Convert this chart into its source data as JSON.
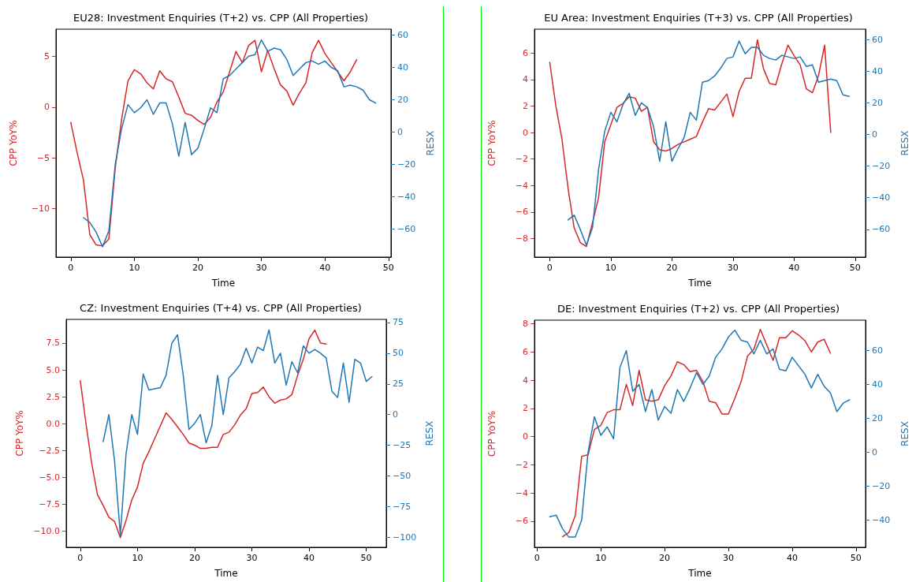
{
  "chart_data": [
    {
      "type": "line",
      "title": "EU28: Investment Enquiries (T+2) vs. CPP (All Properties)",
      "xlabel": "Time",
      "ylabel": "CPP YoY%",
      "y2label": "RESX",
      "grid": false,
      "marker": "none",
      "line_style": "solid",
      "xlim": [
        -2.33,
        50.4
      ],
      "xticks": [
        0,
        10,
        20,
        30,
        40,
        50
      ],
      "ylim": [
        -14.8,
        7.7
      ],
      "yticks": [
        -10,
        -5,
        0,
        5
      ],
      "y2lim": [
        -77.4,
        63.7
      ],
      "y2ticks": [
        -60,
        -40,
        -20,
        0,
        20,
        40,
        60
      ],
      "series": [
        {
          "color": "#d62728",
          "x": [
            0,
            1,
            2,
            3,
            4,
            5,
            6,
            7,
            8,
            9,
            10,
            11,
            12,
            13,
            14,
            15,
            16,
            17,
            18,
            19,
            20,
            21,
            22,
            23,
            24,
            25,
            26,
            27,
            28,
            29,
            30,
            31,
            32,
            33,
            34,
            35,
            36,
            37,
            38,
            39,
            40,
            41,
            42,
            43,
            44,
            45
          ],
          "values": [
            -1.5,
            -4.5,
            -7.2,
            -12.6,
            -13.6,
            -13.7,
            -13,
            -6,
            -1.2,
            2.6,
            3.7,
            3.3,
            2.4,
            1.8,
            3.6,
            2.8,
            2.5,
            1.0,
            -0.6,
            -0.8,
            -1.3,
            -1.7,
            -1.0,
            0.5,
            1.5,
            3.5,
            5.5,
            4.4,
            6.1,
            6.6,
            3.5,
            5.6,
            3.8,
            2.2,
            1.6,
            0.2,
            1.4,
            2.4,
            5.4,
            6.6,
            5.3,
            4.4,
            3.5,
            2.6,
            3.5,
            4.7
          ]
        },
        {
          "color": "#1f77b4",
          "axis": "y2",
          "x": [
            2,
            3,
            4,
            5,
            6,
            7,
            8,
            9,
            10,
            11,
            12,
            13,
            14,
            15,
            16,
            17,
            18,
            19,
            20,
            21,
            22,
            23,
            24,
            25,
            26,
            27,
            28,
            29,
            30,
            31,
            32,
            33,
            34,
            35,
            36,
            37,
            38,
            39,
            40,
            41,
            42,
            43,
            44,
            45,
            46,
            47,
            48
          ],
          "values": [
            -53,
            -56,
            -62,
            -71,
            -61,
            -20,
            2,
            17,
            12,
            15,
            20,
            11,
            18,
            18,
            5,
            -15,
            6,
            -14,
            -10,
            2,
            15,
            12,
            33,
            35,
            39,
            43,
            47,
            48,
            57,
            50,
            52,
            51,
            45,
            35,
            39,
            43,
            44,
            42,
            44,
            40,
            38,
            28,
            29,
            28,
            26,
            20,
            18
          ]
        }
      ]
    },
    {
      "type": "line",
      "title": "EU Area: Investment Enquiries (T+3) vs. CPP (All Properties)",
      "xlabel": "Time",
      "ylabel": "CPP YoY%",
      "y2label": "RESX",
      "grid": false,
      "marker": "none",
      "line_style": "solid",
      "xlim": [
        -2.5,
        51.7
      ],
      "xticks": [
        0,
        10,
        20,
        30,
        40,
        50
      ],
      "ylim": [
        -9.4,
        7.8
      ],
      "yticks": [
        -8,
        -6,
        -4,
        -2,
        0,
        2,
        4,
        6
      ],
      "y2lim": [
        -77.5,
        66.5
      ],
      "y2ticks": [
        -60,
        -40,
        -20,
        0,
        20,
        40,
        60
      ],
      "series": [
        {
          "color": "#d62728",
          "x": [
            0,
            1,
            2,
            3,
            4,
            5,
            6,
            7,
            8,
            9,
            10,
            11,
            12,
            13,
            14,
            15,
            16,
            17,
            18,
            19,
            20,
            21,
            22,
            23,
            24,
            25,
            26,
            27,
            28,
            29,
            30,
            31,
            32,
            33,
            34,
            35,
            36,
            37,
            38,
            39,
            40,
            41,
            42,
            43,
            44,
            45,
            46
          ],
          "values": [
            5.3,
            2.0,
            -0.5,
            -4.2,
            -7.2,
            -8.3,
            -8.6,
            -6.8,
            -4.9,
            -0.7,
            0.6,
            1.9,
            2.2,
            2.7,
            2.6,
            1.6,
            1.9,
            -0.7,
            -1.3,
            -1.4,
            -1.2,
            -0.9,
            -0.7,
            -0.5,
            -0.3,
            0.8,
            1.8,
            1.7,
            2.3,
            2.9,
            1.2,
            3.1,
            4.1,
            4.1,
            7.0,
            4.8,
            3.7,
            3.6,
            5.2,
            6.6,
            5.8,
            5.1,
            3.3,
            3.0,
            4.3,
            6.6,
            0
          ]
        },
        {
          "color": "#1f77b4",
          "axis": "y2",
          "x": [
            3,
            4,
            5,
            6,
            7,
            8,
            9,
            10,
            11,
            12,
            13,
            14,
            15,
            16,
            17,
            18,
            19,
            20,
            21,
            22,
            23,
            24,
            25,
            26,
            27,
            28,
            29,
            30,
            31,
            32,
            33,
            34,
            35,
            36,
            37,
            38,
            39,
            40,
            41,
            42,
            43,
            44,
            45,
            46,
            47,
            48,
            49
          ],
          "values": [
            -54,
            -51,
            -60,
            -70,
            -59,
            -22,
            2,
            14,
            8,
            19,
            26,
            12,
            20,
            17,
            5,
            -17,
            8,
            -17,
            -9,
            -2,
            14,
            9,
            33,
            34,
            37,
            42,
            48,
            49,
            59,
            51,
            55,
            55,
            50,
            48,
            47,
            50,
            49,
            48,
            49,
            43,
            44,
            33,
            34,
            35,
            34,
            25,
            24
          ]
        }
      ]
    },
    {
      "type": "line",
      "title": "CZ: Investment Enquiries (T+4) vs. CPP (All Properties)",
      "xlabel": "Time",
      "ylabel": "CPP YoY%",
      "y2label": "RESX",
      "grid": false,
      "marker": "none",
      "line_style": "solid",
      "xlim": [
        -2.46,
        53.5
      ],
      "xticks": [
        0,
        10,
        20,
        30,
        40,
        50
      ],
      "ylim": [
        -11.5,
        9.7
      ],
      "yticks": [
        {
          "value": -10,
          "label": "−10.0"
        },
        {
          "value": -7.5,
          "label": "−7.5"
        },
        {
          "value": -5,
          "label": "−5.0"
        },
        {
          "value": -2.5,
          "label": "−2.5"
        },
        {
          "value": 0,
          "label": "0.0"
        },
        {
          "value": 2.5,
          "label": "2.5"
        },
        {
          "value": 5,
          "label": "5.0"
        },
        {
          "value": 7.5,
          "label": "7.5"
        }
      ],
      "y2lim": [
        -108,
        77.5
      ],
      "y2ticks": [
        -100,
        -75,
        -50,
        -25,
        0,
        25,
        50,
        75
      ],
      "series": [
        {
          "color": "#d62728",
          "x": [
            0,
            1,
            2,
            3,
            4,
            5,
            6,
            7,
            8,
            9,
            10,
            11,
            12,
            13,
            14,
            15,
            16,
            17,
            18,
            19,
            20,
            21,
            22,
            23,
            24,
            25,
            26,
            27,
            28,
            29,
            30,
            31,
            32,
            33,
            34,
            35,
            36,
            37,
            38,
            39,
            40,
            41,
            42,
            43
          ],
          "values": [
            4.0,
            0,
            -3.7,
            -6.6,
            -7.6,
            -8.7,
            -9.1,
            -10.6,
            -9.0,
            -7.1,
            -5.9,
            -3.7,
            -2.6,
            -1.4,
            -0.2,
            1.0,
            0.4,
            -0.3,
            -1.0,
            -1.8,
            -2.0,
            -2.3,
            -2.3,
            -2.2,
            -2.2,
            -1.0,
            -0.8,
            -0.1,
            0.8,
            1.4,
            2.8,
            2.9,
            3.4,
            2.5,
            1.9,
            2.2,
            2.3,
            2.7,
            4.5,
            6.0,
            7.9,
            8.7,
            7.5,
            7.4
          ]
        },
        {
          "color": "#1f77b4",
          "axis": "y2",
          "x": [
            4,
            5,
            6,
            7,
            8,
            9,
            10,
            11,
            12,
            13,
            14,
            15,
            16,
            17,
            18,
            19,
            20,
            21,
            22,
            23,
            24,
            25,
            26,
            27,
            28,
            29,
            30,
            31,
            32,
            33,
            34,
            35,
            36,
            37,
            38,
            39,
            40,
            41,
            42,
            43,
            44,
            45,
            46,
            47,
            48,
            49,
            50,
            51
          ],
          "values": [
            -22,
            0,
            -38,
            -98,
            -32,
            0,
            -16,
            33,
            20,
            21,
            22,
            32,
            58,
            65,
            32,
            -12,
            -7,
            0,
            -23,
            -9,
            32,
            0,
            30,
            35,
            41,
            54,
            42,
            55,
            52,
            69,
            42,
            50,
            24,
            43,
            34,
            56,
            50,
            53,
            50,
            46,
            19,
            14,
            42,
            10,
            45,
            42,
            27,
            31
          ]
        }
      ]
    },
    {
      "type": "line",
      "title": "DE: Investment Enquiries (T+2) vs. CPP (All Properties)",
      "xlabel": "Time",
      "ylabel": "CPP YoY%",
      "y2label": "RESX",
      "grid": false,
      "marker": "none",
      "line_style": "solid",
      "xlim": [
        -0.4,
        51.5
      ],
      "xticks": [
        0,
        10,
        20,
        30,
        40,
        50
      ],
      "ylim": [
        -7.85,
        8.25
      ],
      "yticks": [
        -6,
        -4,
        -2,
        0,
        2,
        4,
        6,
        8
      ],
      "y2lim": [
        -56,
        77.9
      ],
      "y2ticks": [
        -40,
        -20,
        0,
        20,
        40,
        60
      ],
      "series": [
        {
          "color": "#d62728",
          "x": [
            4,
            5,
            6,
            7,
            8,
            9,
            10,
            11,
            12,
            13,
            14,
            15,
            16,
            17,
            18,
            19,
            20,
            21,
            22,
            23,
            24,
            25,
            26,
            27,
            28,
            29,
            30,
            31,
            32,
            33,
            34,
            35,
            36,
            37,
            38,
            39,
            40,
            41,
            42,
            43,
            44,
            45,
            46
          ],
          "values": [
            -7.1,
            -6.8,
            -5.6,
            -1.4,
            -1.3,
            0.5,
            0.8,
            1.7,
            1.9,
            1.9,
            3.7,
            2.2,
            4.7,
            2.6,
            2.5,
            2.6,
            3.6,
            4.3,
            5.3,
            5.1,
            4.6,
            4.7,
            3.9,
            2.5,
            2.4,
            1.6,
            1.6,
            2.7,
            3.9,
            5.7,
            6.2,
            7.6,
            6.5,
            5.4,
            7.0,
            7.0,
            7.5,
            7.2,
            6.8,
            6.0,
            6.7,
            6.9,
            5.9
          ]
        },
        {
          "color": "#1f77b4",
          "axis": "y2",
          "x": [
            2,
            3,
            4,
            5,
            6,
            7,
            8,
            9,
            10,
            11,
            12,
            13,
            14,
            15,
            16,
            17,
            18,
            19,
            20,
            21,
            22,
            23,
            24,
            25,
            26,
            27,
            28,
            29,
            30,
            31,
            32,
            33,
            34,
            35,
            36,
            37,
            38,
            39,
            40,
            41,
            42,
            43,
            44,
            45,
            46,
            47,
            48,
            49
          ],
          "values": [
            -38,
            -37,
            -45,
            -50,
            -50,
            -40,
            0,
            21,
            10,
            15,
            8,
            50,
            60,
            36,
            40,
            24,
            37,
            19,
            27,
            23,
            37,
            30,
            38,
            47,
            40,
            45,
            56,
            61,
            68,
            72,
            66,
            65,
            58,
            66,
            58,
            61,
            49,
            48,
            56,
            51,
            46,
            38,
            46,
            39,
            35,
            24,
            29,
            31
          ]
        }
      ]
    }
  ]
}
